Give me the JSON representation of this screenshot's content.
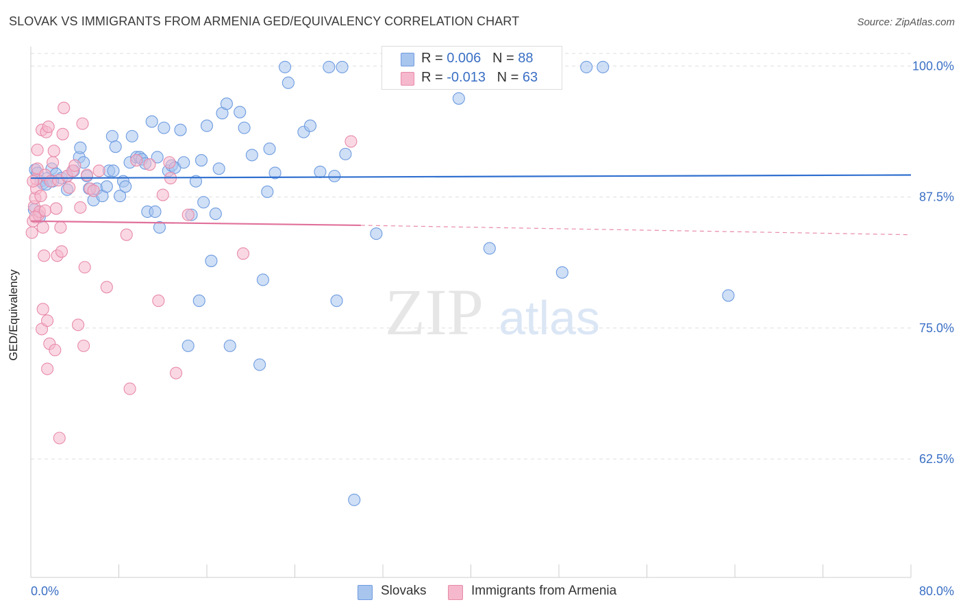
{
  "title": "SLOVAK VS IMMIGRANTS FROM ARMENIA GED/EQUIVALENCY CORRELATION CHART",
  "source": "Source: ZipAtlas.com",
  "watermark": {
    "zip": "ZIP",
    "atlas": "atlas"
  },
  "legend": {
    "rows": [
      {
        "r_label": "R = ",
        "r_value": "0.006",
        "n_label": "N = ",
        "n_value": "88",
        "color": "#a8c5ee",
        "stroke": "#6d9be0"
      },
      {
        "r_label": "R = ",
        "r_value": "-0.013",
        "n_label": "N = ",
        "n_value": "63",
        "color": "#f5b8cc",
        "stroke": "#e88aa8"
      }
    ]
  },
  "bottom_legend": [
    {
      "label": "Slovaks",
      "color": "#a8c5ee",
      "stroke": "#6d9be0"
    },
    {
      "label": "Immigrants from Armenia",
      "color": "#f5b8cc",
      "stroke": "#e88aa8"
    }
  ],
  "chart_data": {
    "type": "scatter",
    "title": "SLOVAK VS IMMIGRANTS FROM ARMENIA GED/EQUIVALENCY CORRELATION CHART",
    "xlabel": "",
    "ylabel": "GED/Equivalency",
    "xlim": [
      0,
      80
    ],
    "ylim": [
      51.2,
      101.2
    ],
    "x_tick_labels": [
      "0.0%",
      "80.0%"
    ],
    "y_ticks": [
      62.5,
      75.0,
      87.5,
      100.0
    ],
    "y_tick_labels": [
      "62.5%",
      "75.0%",
      "87.5%",
      "100.0%"
    ],
    "grid": "horizontal dashed",
    "legend_position": "top-center",
    "series": [
      {
        "name": "Slovaks",
        "color": "#6d9be0",
        "fill": "#a8c5ee",
        "trend": {
          "x": [
            0,
            80
          ],
          "y": [
            89.3,
            89.6
          ],
          "style": "solid"
        },
        "points": [
          [
            0.4,
            90.1
          ],
          [
            0.6,
            89.8
          ],
          [
            0.9,
            89.0
          ],
          [
            1.1,
            88.8
          ],
          [
            1.5,
            89.3
          ],
          [
            1.9,
            90.2
          ],
          [
            2.3,
            89.7
          ],
          [
            2.8,
            89.3
          ],
          [
            3.3,
            88.2
          ],
          [
            3.3,
            89.5
          ],
          [
            3.9,
            90.0
          ],
          [
            4.4,
            91.3
          ],
          [
            4.5,
            92.2
          ],
          [
            4.8,
            90.8
          ],
          [
            5.1,
            89.5
          ],
          [
            5.3,
            88.3
          ],
          [
            5.7,
            87.2
          ],
          [
            6.0,
            88.3
          ],
          [
            6.5,
            87.6
          ],
          [
            6.9,
            88.5
          ],
          [
            7.1,
            90.0
          ],
          [
            7.5,
            90.0
          ],
          [
            7.4,
            93.3
          ],
          [
            7.7,
            92.3
          ],
          [
            8.1,
            87.6
          ],
          [
            8.4,
            89.0
          ],
          [
            8.6,
            88.5
          ],
          [
            9.0,
            90.8
          ],
          [
            9.2,
            93.3
          ],
          [
            9.6,
            91.3
          ],
          [
            9.9,
            91.3
          ],
          [
            10.1,
            91.1
          ],
          [
            10.4,
            90.7
          ],
          [
            10.6,
            86.1
          ],
          [
            11.0,
            94.7
          ],
          [
            11.3,
            86.1
          ],
          [
            11.5,
            91.3
          ],
          [
            11.7,
            84.6
          ],
          [
            12.1,
            94.1
          ],
          [
            12.5,
            90.0
          ],
          [
            12.8,
            90.5
          ],
          [
            13.1,
            90.3
          ],
          [
            13.6,
            93.9
          ],
          [
            13.9,
            90.8
          ],
          [
            14.3,
            73.3
          ],
          [
            14.6,
            85.8
          ],
          [
            15.0,
            89.0
          ],
          [
            15.3,
            77.6
          ],
          [
            15.5,
            91.0
          ],
          [
            15.7,
            87.0
          ],
          [
            16.0,
            94.3
          ],
          [
            16.4,
            81.4
          ],
          [
            16.8,
            85.9
          ],
          [
            17.1,
            90.2
          ],
          [
            17.4,
            95.5
          ],
          [
            17.8,
            96.4
          ],
          [
            18.1,
            73.3
          ],
          [
            19.0,
            95.6
          ],
          [
            19.4,
            94.1
          ],
          [
            20.1,
            91.5
          ],
          [
            20.8,
            71.5
          ],
          [
            21.1,
            79.6
          ],
          [
            21.5,
            88.0
          ],
          [
            21.7,
            92.1
          ],
          [
            22.2,
            89.8
          ],
          [
            23.1,
            99.9
          ],
          [
            23.4,
            98.4
          ],
          [
            24.8,
            93.7
          ],
          [
            25.4,
            94.3
          ],
          [
            26.3,
            89.9
          ],
          [
            27.1,
            99.9
          ],
          [
            27.6,
            89.5
          ],
          [
            27.8,
            77.6
          ],
          [
            28.3,
            99.9
          ],
          [
            28.6,
            91.6
          ],
          [
            29.4,
            58.6
          ],
          [
            31.4,
            84.0
          ],
          [
            39.1,
            99.9
          ],
          [
            38.9,
            96.9
          ],
          [
            41.7,
            82.6
          ],
          [
            48.3,
            80.3
          ],
          [
            50.5,
            99.9
          ],
          [
            52.0,
            99.9
          ],
          [
            63.4,
            78.1
          ],
          [
            0.3,
            86.3
          ],
          [
            0.8,
            85.6
          ],
          [
            1.4,
            88.7
          ],
          [
            2.0,
            89.0
          ]
        ]
      },
      {
        "name": "Immigrants from Armenia",
        "color": "#e88aa8",
        "fill": "#f5b8cc",
        "trend": {
          "x": [
            0,
            30
          ],
          "y": [
            85.2,
            84.8
          ],
          "style": "solid",
          "extend_to": 80,
          "extend_y": 83.9
        },
        "points": [
          [
            0.1,
            84.1
          ],
          [
            0.2,
            85.2
          ],
          [
            0.3,
            86.6
          ],
          [
            0.4,
            87.4
          ],
          [
            0.5,
            88.3
          ],
          [
            0.5,
            89.2
          ],
          [
            0.6,
            90.2
          ],
          [
            0.6,
            92.0
          ],
          [
            0.7,
            85.8
          ],
          [
            0.8,
            86.1
          ],
          [
            0.9,
            87.6
          ],
          [
            1.0,
            74.9
          ],
          [
            1.0,
            93.9
          ],
          [
            1.1,
            84.6
          ],
          [
            1.1,
            76.8
          ],
          [
            1.2,
            81.9
          ],
          [
            1.3,
            86.2
          ],
          [
            1.3,
            89.6
          ],
          [
            1.4,
            93.7
          ],
          [
            1.5,
            71.1
          ],
          [
            1.5,
            75.7
          ],
          [
            1.6,
            94.2
          ],
          [
            1.7,
            73.5
          ],
          [
            1.8,
            89.0
          ],
          [
            2.0,
            90.8
          ],
          [
            2.1,
            91.9
          ],
          [
            2.2,
            72.9
          ],
          [
            2.3,
            86.4
          ],
          [
            2.4,
            81.9
          ],
          [
            2.5,
            89.1
          ],
          [
            2.6,
            64.5
          ],
          [
            2.7,
            84.6
          ],
          [
            2.8,
            82.3
          ],
          [
            2.9,
            93.5
          ],
          [
            3.0,
            96.0
          ],
          [
            3.3,
            89.5
          ],
          [
            3.5,
            88.4
          ],
          [
            3.8,
            90.0
          ],
          [
            4.0,
            90.5
          ],
          [
            4.3,
            75.3
          ],
          [
            4.5,
            86.5
          ],
          [
            4.7,
            94.5
          ],
          [
            4.8,
            73.3
          ],
          [
            4.9,
            80.8
          ],
          [
            5.1,
            89.6
          ],
          [
            5.4,
            88.3
          ],
          [
            5.7,
            88.1
          ],
          [
            6.2,
            90.0
          ],
          [
            6.9,
            78.9
          ],
          [
            8.7,
            83.9
          ],
          [
            9.0,
            69.2
          ],
          [
            9.6,
            91.0
          ],
          [
            10.8,
            90.6
          ],
          [
            11.6,
            77.6
          ],
          [
            12.0,
            87.7
          ],
          [
            12.6,
            90.8
          ],
          [
            12.7,
            89.3
          ],
          [
            13.2,
            70.7
          ],
          [
            14.3,
            85.8
          ],
          [
            19.3,
            82.1
          ],
          [
            29.1,
            92.8
          ],
          [
            0.2,
            89.0
          ],
          [
            0.4,
            85.6
          ]
        ]
      }
    ]
  }
}
